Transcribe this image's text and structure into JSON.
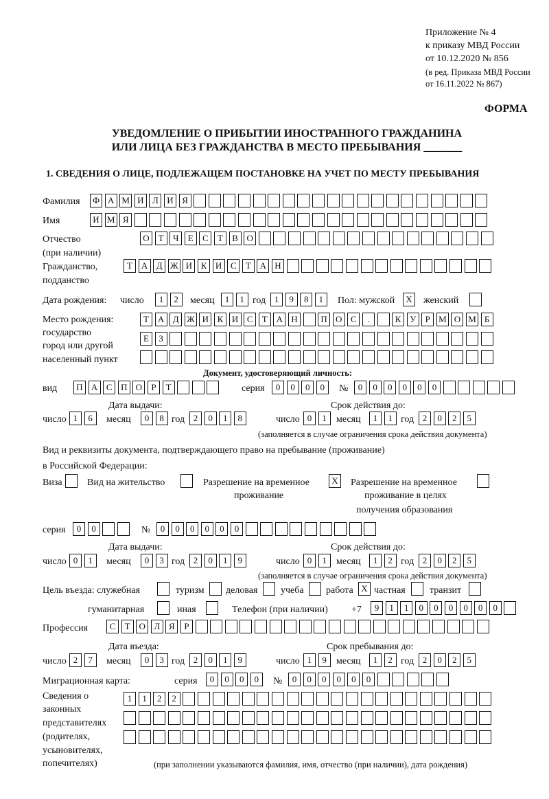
{
  "header": {
    "appendix_line1": "Приложение № 4",
    "appendix_line2": "к приказу МВД России",
    "appendix_line3": "от 10.12.2020 № 856",
    "edition_line1": "(в ред. Приказа МВД России",
    "edition_line2": "от 16.11.2022 № 867)",
    "forma": "ФОРМА",
    "title_line1": "УВЕДОМЛЕНИЕ О ПРИБЫТИИ ИНОСТРАННОГО ГРАЖДАНИНА",
    "title_line2": "ИЛИ ЛИЦА БЕЗ ГРАЖДАНСТВА В МЕСТО ПРЕБЫВАНИЯ _______",
    "section1": "1. СВЕДЕНИЯ О ЛИЦЕ, ПОДЛЕЖАЩЕМ ПОСТАНОВКЕ НА УЧЕТ ПО МЕСТУ ПРЕБЫВАНИЯ"
  },
  "labels": {
    "surname": "Фамилия",
    "name": "Имя",
    "patronymic": "Отчество",
    "patronymic_note": "(при наличии)",
    "citizenship": "Гражданство,",
    "citizenship2": "подданство",
    "birth_date": "Дата рождения:",
    "day": "число",
    "month": "месяц",
    "year": "год",
    "sex_male": "Пол: мужской",
    "sex_female": "женский",
    "birthplace1": "Место рождения:",
    "birthplace2": "государство",
    "birthplace3": "город или другой",
    "birthplace4": "населенный пункт",
    "id_doc": "Документ, удостоверяющий личность:",
    "kind": "вид",
    "series": "серия",
    "number": "№",
    "issue_date": "Дата выдачи:",
    "valid_until": "Срок действия до:",
    "valid_note": "(заполняется в случае ограничения срока действия документа)",
    "stay_doc1": "Вид и реквизиты документа, подтверждающего право на пребывание (проживание)",
    "stay_doc2": "в Российской Федерации:",
    "visa": "Виза",
    "residence_permit": "Вид на жительство",
    "trp1": "Разрешение на временное",
    "trp2": "проживание",
    "trp_edu1": "Разрешение на временное",
    "trp_edu2": "проживание в целях",
    "trp_edu3": "получения образования",
    "purpose": "Цель въезда: служебная",
    "tourism": "туризм",
    "business": "деловая",
    "study": "учеба",
    "work": "работа",
    "private": "частная",
    "transit": "транзит",
    "humanitarian": "гуманитарная",
    "other": "иная",
    "phone": "Телефон (при наличии)",
    "phone_prefix": "+7",
    "profession": "Профессия",
    "entry_date": "Дата въезда:",
    "stay_until": "Срок пребывания до:",
    "migration_card": "Миграционная карта:",
    "reps1": "Сведения о",
    "reps2": "законных",
    "reps3": "представителях",
    "reps4": "(родителях,",
    "reps5": "усыновителях,",
    "reps6": "попечителях)",
    "reps_note": "(при заполнении указываются фамилия, имя, отчество (при наличии), дата рождения)"
  },
  "fields": {
    "surname": "ФАМИЛИЯ",
    "name": "ИМЯ",
    "patronymic": "ОТЧЕСТВО",
    "citizenship": "ТАДЖИКИСТАН",
    "birth_day": "12",
    "birth_month": "11",
    "birth_year": "1981",
    "sex_male": "X",
    "sex_female": "",
    "birthplace_row1": "ТАДЖИКИСТАН ПОС. КУРМОМБ",
    "birthplace_row2": "ЕЗ",
    "birthplace_row3": "",
    "id_kind": "ПАСПОРТ",
    "id_series": "0000",
    "id_number": "000000",
    "id_issue_day": "16",
    "id_issue_month": "08",
    "id_issue_year": "2018",
    "id_valid_day": "01",
    "id_valid_month": "11",
    "id_valid_year": "2025",
    "visa": "",
    "residence_permit": "",
    "trp": "X",
    "trp_edu": "",
    "stay_series": "00",
    "stay_number": "000000",
    "stay_issue_day": "01",
    "stay_issue_month": "03",
    "stay_issue_year": "2019",
    "stay_valid_day": "01",
    "stay_valid_month": "12",
    "stay_valid_year": "2025",
    "purpose_official": "",
    "purpose_tourism": "",
    "purpose_business": "",
    "purpose_study": "",
    "purpose_work": "X",
    "purpose_private": "",
    "purpose_transit": "",
    "purpose_humanitarian": "",
    "purpose_other": "",
    "phone": "911000000",
    "profession": "СТОЛЯР",
    "entry_day": "27",
    "entry_month": "03",
    "entry_year": "2019",
    "stay_until_day": "19",
    "stay_until_month": "12",
    "stay_until_year": "2025",
    "mc_series": "0000",
    "mc_number": "000000",
    "reps_row1": "1122",
    "reps_row2": "",
    "reps_row3": ""
  }
}
